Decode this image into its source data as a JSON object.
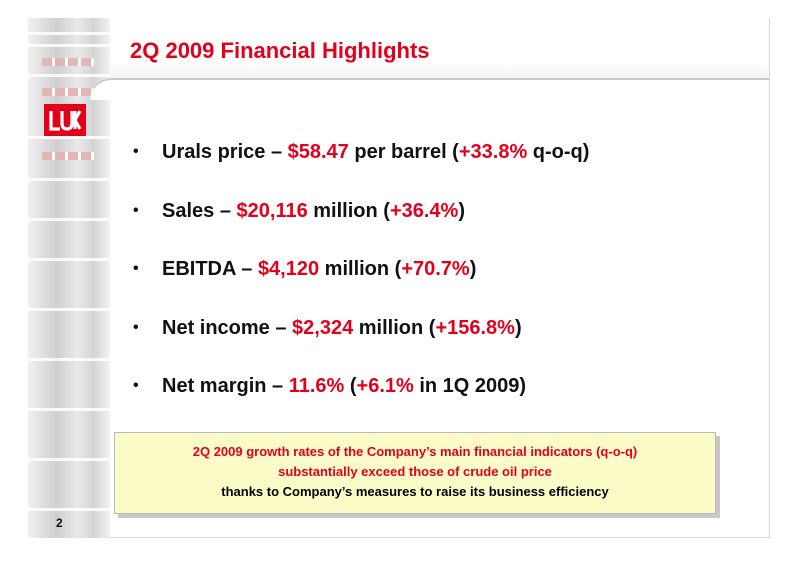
{
  "slide": {
    "title": "2Q 2009 Financial Highlights",
    "page_number": "2",
    "logo_text": "LUK"
  },
  "bullets": [
    {
      "marker": "•",
      "parts": [
        {
          "t": "Urals price – ",
          "red": false
        },
        {
          "t": "$58.47",
          "red": true
        },
        {
          "t": " per barrel (",
          "red": false
        },
        {
          "t": "+33.8%",
          "red": true
        },
        {
          "t": " q-o-q)",
          "red": false
        }
      ]
    },
    {
      "marker": "•",
      "parts": [
        {
          "t": "Sales – ",
          "red": false
        },
        {
          "t": "$20,116",
          "red": true
        },
        {
          "t": " million (",
          "red": false
        },
        {
          "t": "+36.4%",
          "red": true
        },
        {
          "t": ")",
          "red": false
        }
      ]
    },
    {
      "marker": "•",
      "parts": [
        {
          "t": "EBITDA – ",
          "red": false
        },
        {
          "t": "$4,120",
          "red": true
        },
        {
          "t": " million (",
          "red": false
        },
        {
          "t": "+70.7%",
          "red": true
        },
        {
          "t": ")",
          "red": false
        }
      ]
    },
    {
      "marker": "•",
      "parts": [
        {
          "t": "Net income – ",
          "red": false
        },
        {
          "t": "$2,324",
          "red": true
        },
        {
          "t": " million (",
          "red": false
        },
        {
          "t": "+156.8%",
          "red": true
        },
        {
          "t": ")",
          "red": false
        }
      ]
    },
    {
      "marker": "•",
      "parts": [
        {
          "t": "Net margin – ",
          "red": false
        },
        {
          "t": "11.6%",
          "red": true
        },
        {
          "t": " (",
          "red": false
        },
        {
          "t": "+6.1%",
          "red": true
        },
        {
          "t": " in 1Q 2009)",
          "red": false
        }
      ]
    }
  ],
  "callout": {
    "line1": "2Q 2009 growth rates of the Company’s main financial indicators (q-o-q)",
    "line2": "substantially exceed those of crude oil price",
    "line3": "thanks to Company’s measures to raise its business efficiency"
  },
  "colors": {
    "accent_red": "#e3001b",
    "callout_bg": "#fbfbc8",
    "text": "#111111"
  }
}
